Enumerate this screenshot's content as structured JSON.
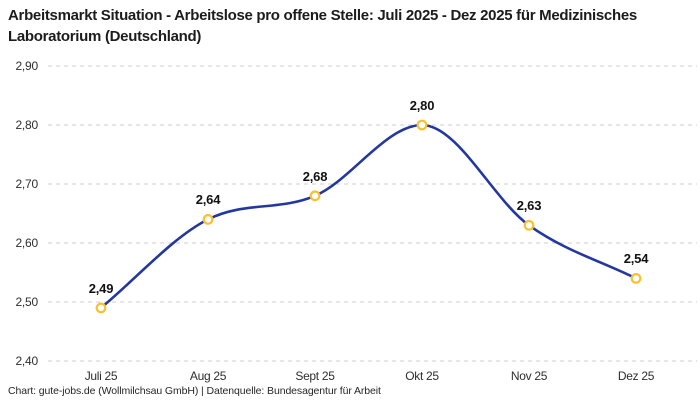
{
  "header": {
    "title": "Arbeitsmarkt Situation - Arbeitslose pro offene Stelle: Juli 2025 - Dez 2025 für Medizinisches Laboratorium (Deutschland)"
  },
  "footer": {
    "credit": "Chart: gute-jobs.de (Wollmilchsau GmbH) | Datenquelle: Bundesagentur für Arbeit"
  },
  "chart_data": {
    "type": "line",
    "title": "Arbeitsmarkt Situation - Arbeitslose pro offene Stelle: Juli 2025 - Dez 2025 für Medizinisches Laboratorium (Deutschland)",
    "categories": [
      "Juli 25",
      "Aug 25",
      "Sept 25",
      "Okt 25",
      "Nov 25",
      "Dez 25"
    ],
    "values": [
      2.49,
      2.64,
      2.68,
      2.8,
      2.63,
      2.54
    ],
    "value_labels": [
      "2,49",
      "2,64",
      "2,68",
      "2,80",
      "2,63",
      "2,54"
    ],
    "ylim": [
      2.4,
      2.9
    ],
    "ytick_labels": [
      "2,90",
      "2,80",
      "2,70",
      "2,60",
      "2,50",
      "2,40"
    ],
    "ytick_values": [
      2.9,
      2.8,
      2.7,
      2.6,
      2.5,
      2.4
    ],
    "grid": "horizontal-dashed",
    "legend": "none",
    "marker_style": "open-circle",
    "colors": {
      "line": "#2337a0",
      "marker_stroke": "#fbc02d",
      "marker_fill": "#ffffff",
      "grid": "#cfcfcf",
      "tick_text": "#2e2e2e",
      "label_text": "#111111",
      "title_text": "#1c1c1c"
    }
  }
}
